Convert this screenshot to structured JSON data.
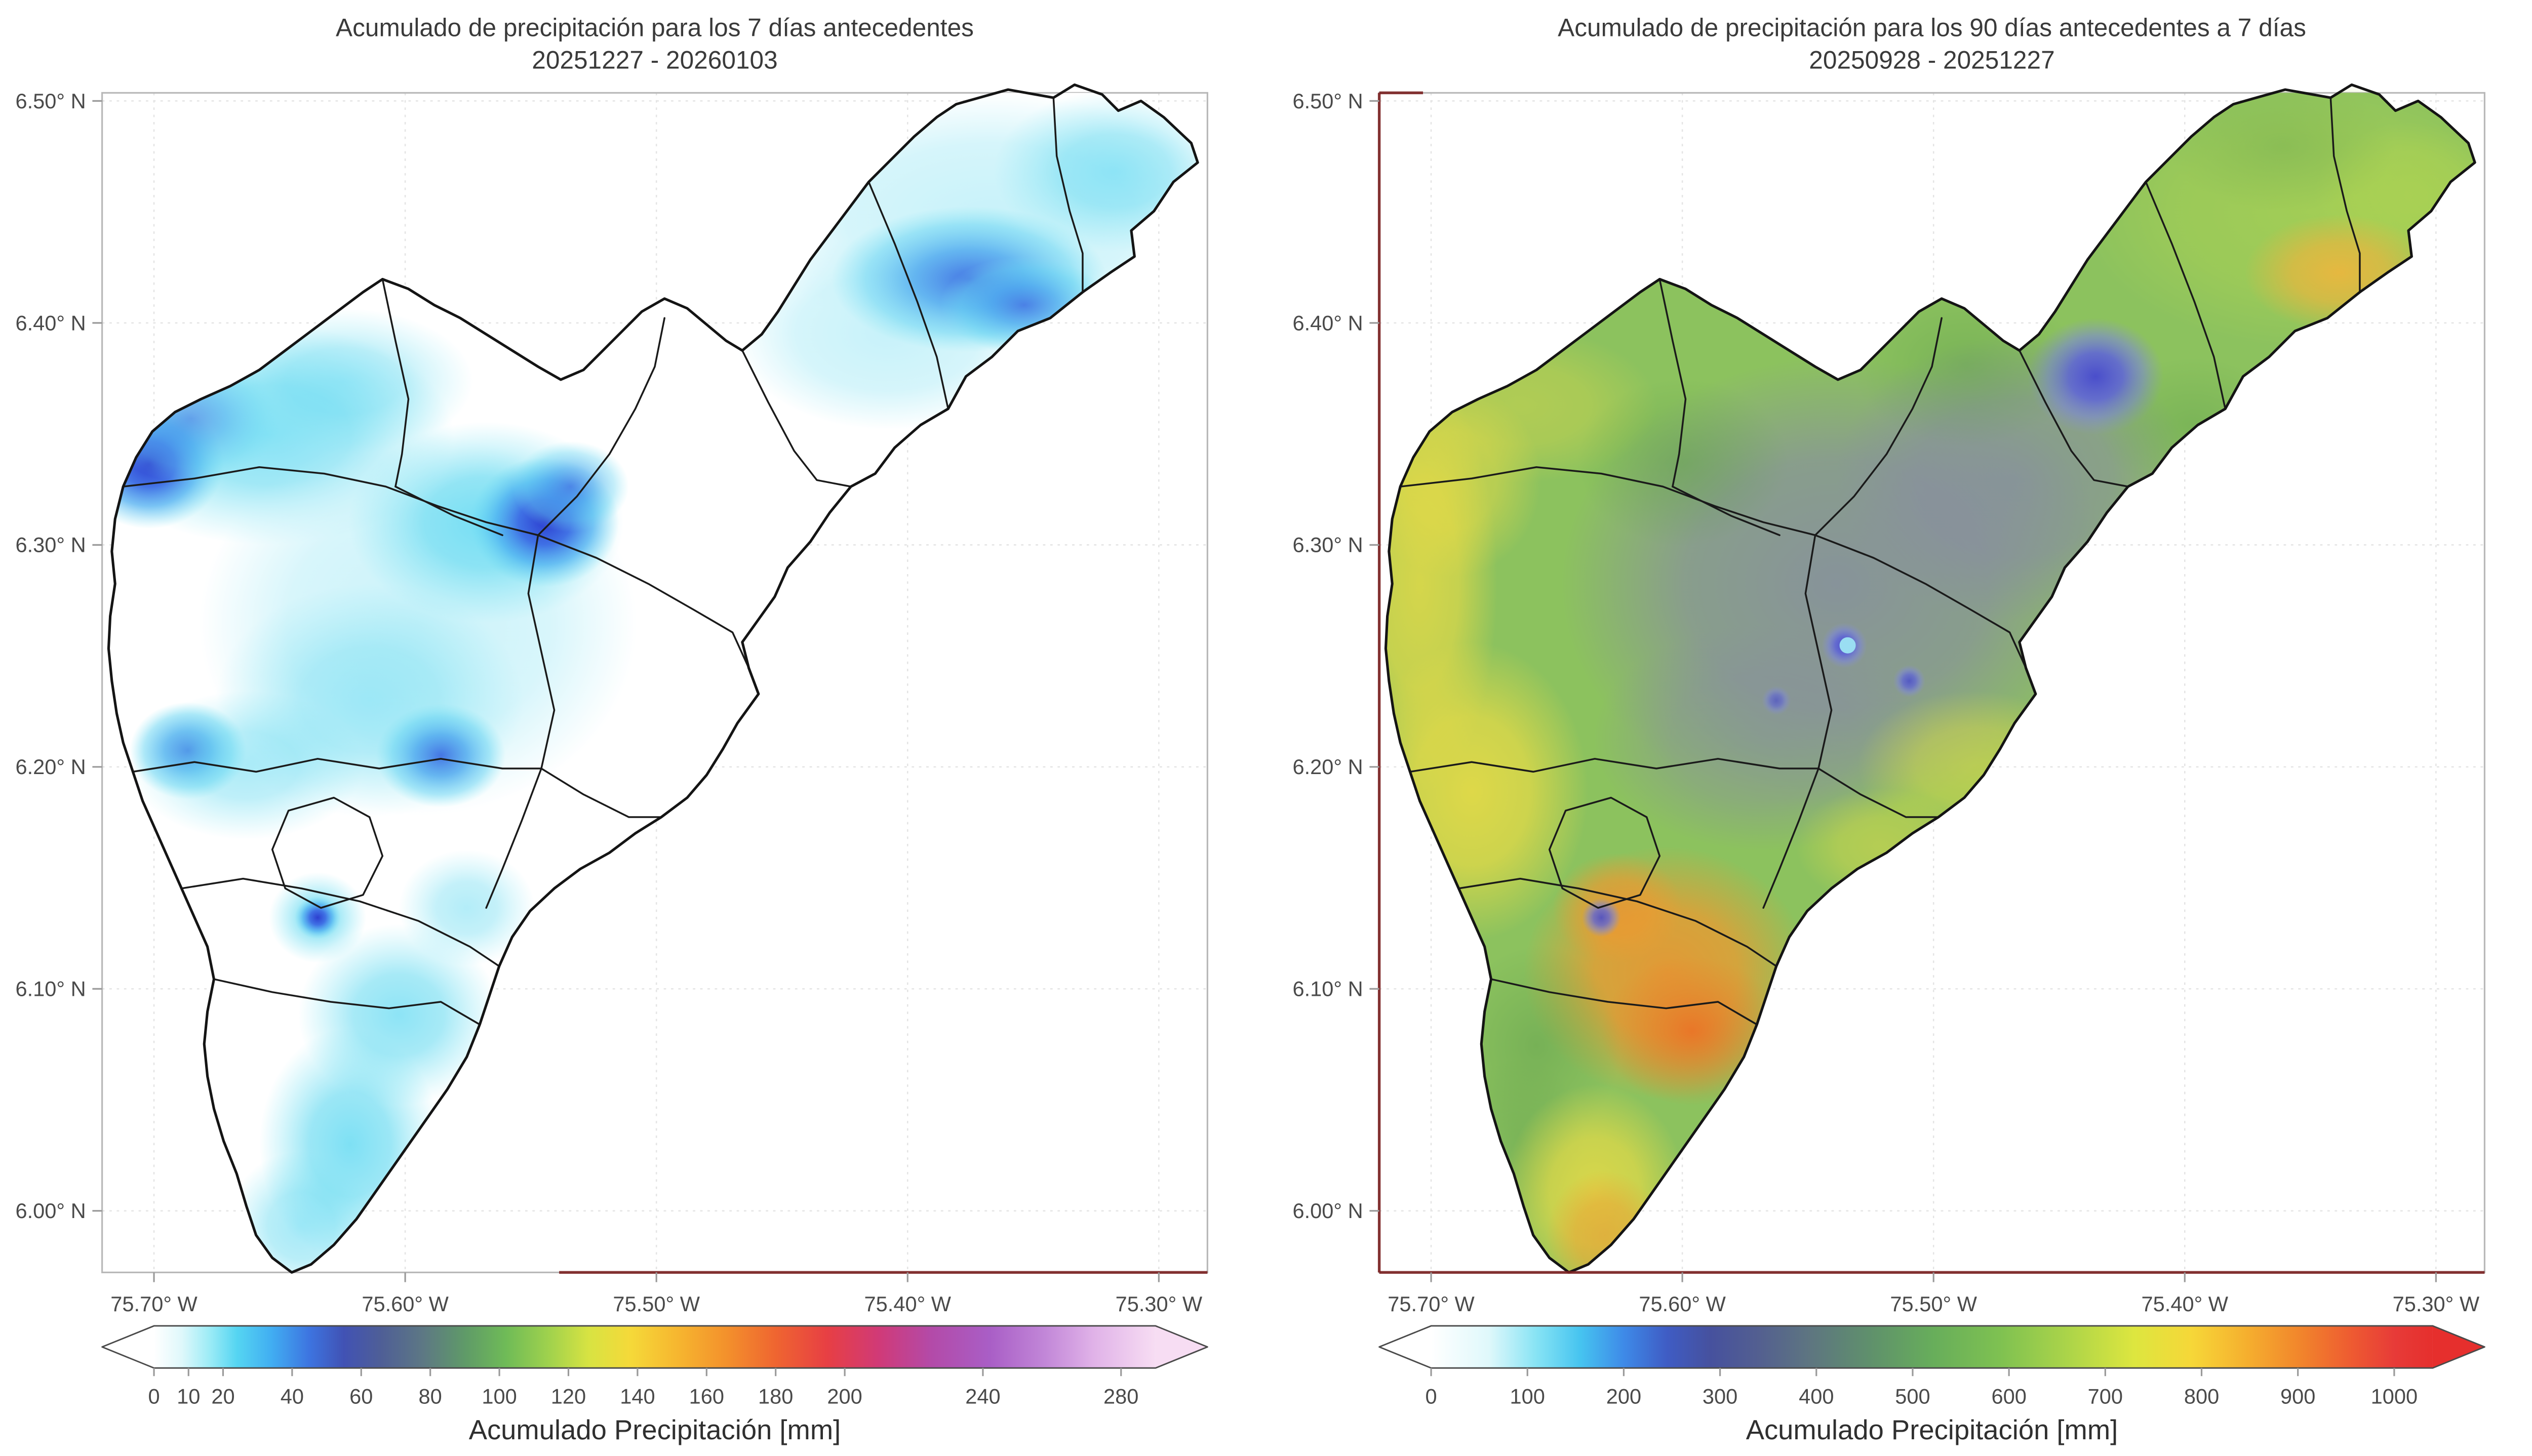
{
  "figure": {
    "background": "#ffffff",
    "region": "Valle de Aburrá y municipios vecinos",
    "boundary_color": "#141414"
  },
  "panels": [
    {
      "title_line1": "Acumulado de precipitación para los 7 días antecedentes",
      "title_line2": "20251227 - 20260103",
      "x_ticks": [
        "75.70° W",
        "75.60° W",
        "75.50° W",
        "75.40° W",
        "75.30° W"
      ],
      "y_ticks": [
        "6.50° N",
        "6.40° N",
        "6.30° N",
        "6.20° N",
        "6.10° N",
        "6.00° N"
      ],
      "colorbar": {
        "label": "Acumulado Precipitación [mm]",
        "vmax": 290,
        "ticks": [
          0,
          10,
          20,
          40,
          60,
          80,
          100,
          120,
          140,
          160,
          180,
          200,
          240,
          280
        ],
        "under_color": "#ffffff",
        "over_color": "#f7ddf3",
        "stops": [
          {
            "v": 0,
            "c": "#ffffff"
          },
          {
            "v": 8,
            "c": "#dff8fb"
          },
          {
            "v": 16,
            "c": "#9decf6"
          },
          {
            "v": 24,
            "c": "#55d5f2"
          },
          {
            "v": 34,
            "c": "#41aef2"
          },
          {
            "v": 45,
            "c": "#3d74e0"
          },
          {
            "v": 55,
            "c": "#4152b4"
          },
          {
            "v": 66,
            "c": "#4f5f96"
          },
          {
            "v": 78,
            "c": "#5d7884"
          },
          {
            "v": 90,
            "c": "#5f9a68"
          },
          {
            "v": 102,
            "c": "#6fbb57"
          },
          {
            "v": 114,
            "c": "#9ed14d"
          },
          {
            "v": 126,
            "c": "#d8e342"
          },
          {
            "v": 138,
            "c": "#f5d939"
          },
          {
            "v": 152,
            "c": "#f6b52f"
          },
          {
            "v": 166,
            "c": "#f3902c"
          },
          {
            "v": 180,
            "c": "#ef6530"
          },
          {
            "v": 195,
            "c": "#e73f44"
          },
          {
            "v": 210,
            "c": "#d03a78"
          },
          {
            "v": 225,
            "c": "#b34aa8"
          },
          {
            "v": 242,
            "c": "#a95ec6"
          },
          {
            "v": 258,
            "c": "#c287d8"
          },
          {
            "v": 272,
            "c": "#e0b2e8"
          },
          {
            "v": 290,
            "c": "#f7ddf3"
          }
        ]
      }
    },
    {
      "title_line1": "Acumulado de precipitación para los 90 días antecedentes a 7 días",
      "title_line2": "20250928 - 20251227",
      "x_ticks": [
        "75.70° W",
        "75.60° W",
        "75.50° W",
        "75.40° W",
        "75.30° W"
      ],
      "y_ticks": [
        "6.50° N",
        "6.40° N",
        "6.30° N",
        "6.20° N",
        "6.10° N",
        "6.00° N"
      ],
      "colorbar": {
        "label": "Acumulado Precipitación [mm]",
        "vmax": 1040,
        "ticks": [
          0,
          100,
          200,
          300,
          400,
          500,
          600,
          700,
          800,
          900,
          1000
        ],
        "under_color": "#ffffff",
        "over_color": "#e62f2d",
        "stops": [
          {
            "v": 0,
            "c": "#ffffff"
          },
          {
            "v": 60,
            "c": "#dff8fb"
          },
          {
            "v": 110,
            "c": "#86e3f4"
          },
          {
            "v": 155,
            "c": "#46c4f0"
          },
          {
            "v": 200,
            "c": "#3e8ae8"
          },
          {
            "v": 245,
            "c": "#3f5cc4"
          },
          {
            "v": 290,
            "c": "#46519e"
          },
          {
            "v": 340,
            "c": "#535f90"
          },
          {
            "v": 395,
            "c": "#5e7680"
          },
          {
            "v": 455,
            "c": "#5f906c"
          },
          {
            "v": 520,
            "c": "#67ad5b"
          },
          {
            "v": 590,
            "c": "#7ec151"
          },
          {
            "v": 660,
            "c": "#abd449"
          },
          {
            "v": 730,
            "c": "#dde63f"
          },
          {
            "v": 790,
            "c": "#f6d738"
          },
          {
            "v": 850,
            "c": "#f5ad2e"
          },
          {
            "v": 905,
            "c": "#f1832c"
          },
          {
            "v": 955,
            "c": "#ee5b31"
          },
          {
            "v": 1000,
            "c": "#e73b38"
          },
          {
            "v": 1040,
            "c": "#e62f2d"
          }
        ]
      }
    }
  ],
  "chart_data": [
    {
      "type": "heatmap",
      "subtype": "interpolated precipitation field over municipal boundaries",
      "title": "Acumulado de precipitación para los 7 días antecedentes",
      "subtitle": "20251227 - 20260103",
      "units": "mm",
      "x_axis": {
        "ticks": [
          "75.70° W",
          "75.60° W",
          "75.50° W",
          "75.40° W",
          "75.30° W"
        ],
        "range_deg_w": [
          75.72,
          75.26
        ]
      },
      "y_axis": {
        "ticks": [
          "6.50° N",
          "6.40° N",
          "6.30° N",
          "6.20° N",
          "6.10° N",
          "6.00° N"
        ],
        "range_deg_n": [
          5.97,
          6.51
        ]
      },
      "colorbar": {
        "label": "Acumulado Precipitación [mm]",
        "ticks": [
          0,
          10,
          20,
          40,
          60,
          80,
          100,
          120,
          140,
          160,
          180,
          200,
          240,
          280
        ],
        "range": [
          0,
          290
        ],
        "arrow_ends": true
      },
      "grid": true,
      "value_summary": {
        "background_mm": "0-20 (blanco a cian claro en la mayor parte del área)",
        "maxima": [
          {
            "lon_w": 75.34,
            "lat_n": 6.42,
            "approx_mm": 45,
            "note": "núcleo azul en el brazo noreste"
          },
          {
            "lon_w": 75.68,
            "lat_n": 6.34,
            "approx_mm": 45,
            "note": "núcleo azul borde noroccidental"
          },
          {
            "lon_w": 75.52,
            "lat_n": 6.31,
            "approx_mm": 50,
            "note": "núcleo azul centro-norte"
          },
          {
            "lon_w": 75.56,
            "lat_n": 6.21,
            "approx_mm": 40,
            "note": "núcleo azul centro"
          },
          {
            "lon_w": 75.66,
            "lat_n": 6.21,
            "approx_mm": 35,
            "note": "núcleo azul borde occidental"
          },
          {
            "lon_w": 75.61,
            "lat_n": 6.14,
            "approx_mm": 40,
            "note": "punto azul pequeño"
          },
          {
            "lon_w": 75.6,
            "lat_n": 6.03,
            "approx_mm": 25,
            "note": "franja cian lóbulo sur"
          }
        ]
      }
    },
    {
      "type": "heatmap",
      "subtype": "interpolated precipitation field over municipal boundaries",
      "title": "Acumulado de precipitación para los 90 días antecedentes a 7 días",
      "subtitle": "20250928 - 20251227",
      "units": "mm",
      "x_axis": {
        "ticks": [
          "75.70° W",
          "75.60° W",
          "75.50° W",
          "75.40° W",
          "75.30° W"
        ],
        "range_deg_w": [
          75.72,
          75.26
        ]
      },
      "y_axis": {
        "ticks": [
          "6.50° N",
          "6.40° N",
          "6.30° N",
          "6.20° N",
          "6.10° N",
          "6.00° N"
        ],
        "range_deg_n": [
          5.97,
          6.51
        ]
      },
      "colorbar": {
        "label": "Acumulado Precipitación [mm]",
        "ticks": [
          0,
          100,
          200,
          300,
          400,
          500,
          600,
          700,
          800,
          900,
          1000
        ],
        "range": [
          0,
          1040
        ],
        "arrow_ends": true
      },
      "grid": true,
      "value_summary": {
        "background_mm": "500-650 (verde dominante)",
        "zones": [
          {
            "lon_w": 75.51,
            "lat_n": 6.31,
            "approx_mm": 420,
            "note": "zona central gris-pizarra 350-470 mm"
          },
          {
            "lon_w": 75.41,
            "lat_n": 6.38,
            "approx_mm": 230,
            "note": "mínimo índigo-azul"
          },
          {
            "lon_w": 75.55,
            "lat_n": 6.26,
            "approx_mm": 250,
            "note": "puntos azules pequeños"
          },
          {
            "lon_w": 75.32,
            "lat_n": 6.42,
            "approx_mm": 780,
            "note": "núcleo amarillo-naranja brazo noreste"
          },
          {
            "lon_w": 75.7,
            "lat_n": 6.28,
            "approx_mm": 710,
            "note": "franja amarilla borde occidental"
          },
          {
            "lon_w": 75.67,
            "lat_n": 6.19,
            "approx_mm": 730,
            "note": "mancha amarilla occidente"
          },
          {
            "lon_w": 75.59,
            "lat_n": 6.1,
            "approx_mm": 840,
            "note": "núcleo naranja sur (máximo)"
          },
          {
            "lon_w": 75.61,
            "lat_n": 6.01,
            "approx_mm": 760,
            "note": "lóbulo sur amarillo-naranja"
          }
        ]
      }
    }
  ]
}
